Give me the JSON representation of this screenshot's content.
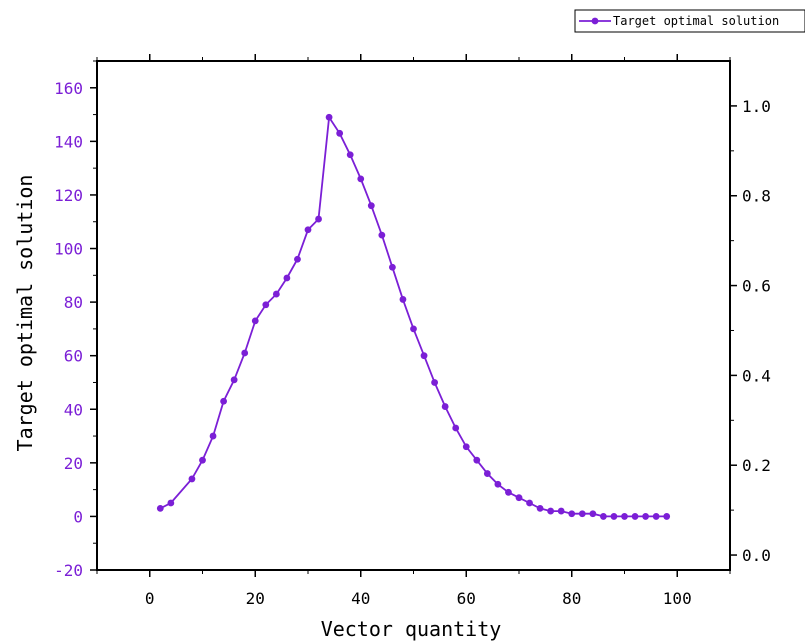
{
  "chart_data": {
    "type": "line",
    "xlabel": "Vector quantity",
    "ylabel": "Target optimal solution",
    "xlim": [
      -10,
      110
    ],
    "ylim": [
      -20,
      170
    ],
    "y2lim": [
      -0.0333,
      1.1
    ],
    "xticks": [
      "0",
      "20",
      "40",
      "60",
      "80",
      "100"
    ],
    "yticks": [
      "-20",
      "0",
      "20",
      "40",
      "60",
      "80",
      "100",
      "120",
      "140",
      "160"
    ],
    "y2ticks": [
      "0.0",
      "0.2",
      "0.4",
      "0.6",
      "0.8",
      "1.0"
    ],
    "grid": false,
    "legend_position": "top-right",
    "series": [
      {
        "name": "Target optimal solution",
        "color": "#7b1fd6",
        "x": [
          2,
          4,
          8,
          10,
          12,
          14,
          16,
          18,
          20,
          22,
          24,
          26,
          28,
          30,
          32,
          34,
          36,
          38,
          40,
          42,
          44,
          46,
          48,
          50,
          52,
          54,
          56,
          58,
          60,
          62,
          64,
          66,
          68,
          70,
          72,
          74,
          76,
          78,
          80,
          82,
          84,
          86,
          88,
          90,
          92,
          94,
          96,
          98
        ],
        "y": [
          3,
          5,
          14,
          21,
          30,
          43,
          51,
          61,
          73,
          79,
          83,
          89,
          96,
          107,
          111,
          149,
          143,
          135,
          126,
          116,
          105,
          93,
          81,
          70,
          60,
          50,
          41,
          33,
          26,
          21,
          16,
          12,
          9,
          7,
          5,
          3,
          2,
          2,
          1,
          1,
          1,
          0,
          0,
          0,
          0,
          0,
          0,
          0
        ]
      }
    ],
    "tick_color": "#7b1fd6"
  }
}
